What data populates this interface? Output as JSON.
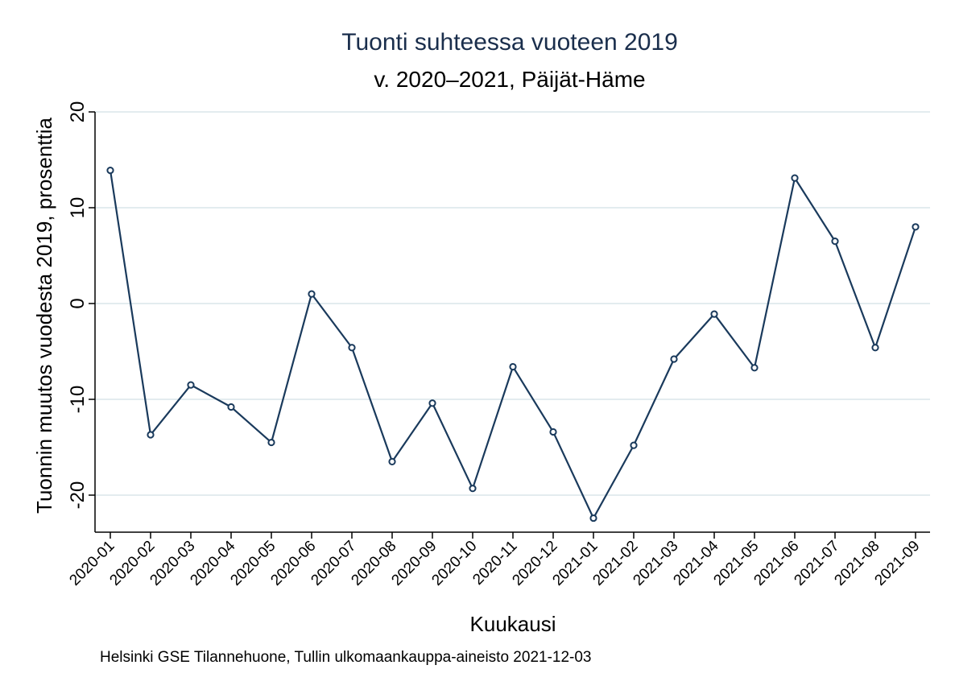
{
  "chart_data": {
    "type": "line",
    "title": "Tuonti suhteessa vuoteen 2019",
    "subtitle": "v. 2020–2021, Päijät-Häme",
    "xlabel": "Kuukausi",
    "ylabel": "Tuonnin muutos vuodesta 2019, prosenttia",
    "note": "Helsinki GSE Tilannehuone, Tullin ulkomaankauppa-aineisto 2021-12-03",
    "categories": [
      "2020-01",
      "2020-02",
      "2020-03",
      "2020-04",
      "2020-05",
      "2020-06",
      "2020-07",
      "2020-08",
      "2020-09",
      "2020-10",
      "2020-11",
      "2020-12",
      "2021-01",
      "2021-02",
      "2021-03",
      "2021-04",
      "2021-05",
      "2021-06",
      "2021-07",
      "2021-08",
      "2021-09"
    ],
    "values": [
      13.9,
      -13.7,
      -8.5,
      -10.8,
      -14.5,
      1.0,
      -4.6,
      -16.5,
      -10.4,
      -19.3,
      -6.6,
      -13.4,
      -22.4,
      -14.8,
      -5.8,
      -1.1,
      -6.7,
      13.1,
      6.5,
      -4.6,
      8.0
    ],
    "yticks": [
      20,
      10,
      0,
      -10,
      -20
    ],
    "ylim": [
      -24,
      21
    ],
    "grid": true,
    "colors": {
      "line": "#1a3a5c",
      "grid": "#e3ecef",
      "title": "#1a2e4c"
    }
  }
}
